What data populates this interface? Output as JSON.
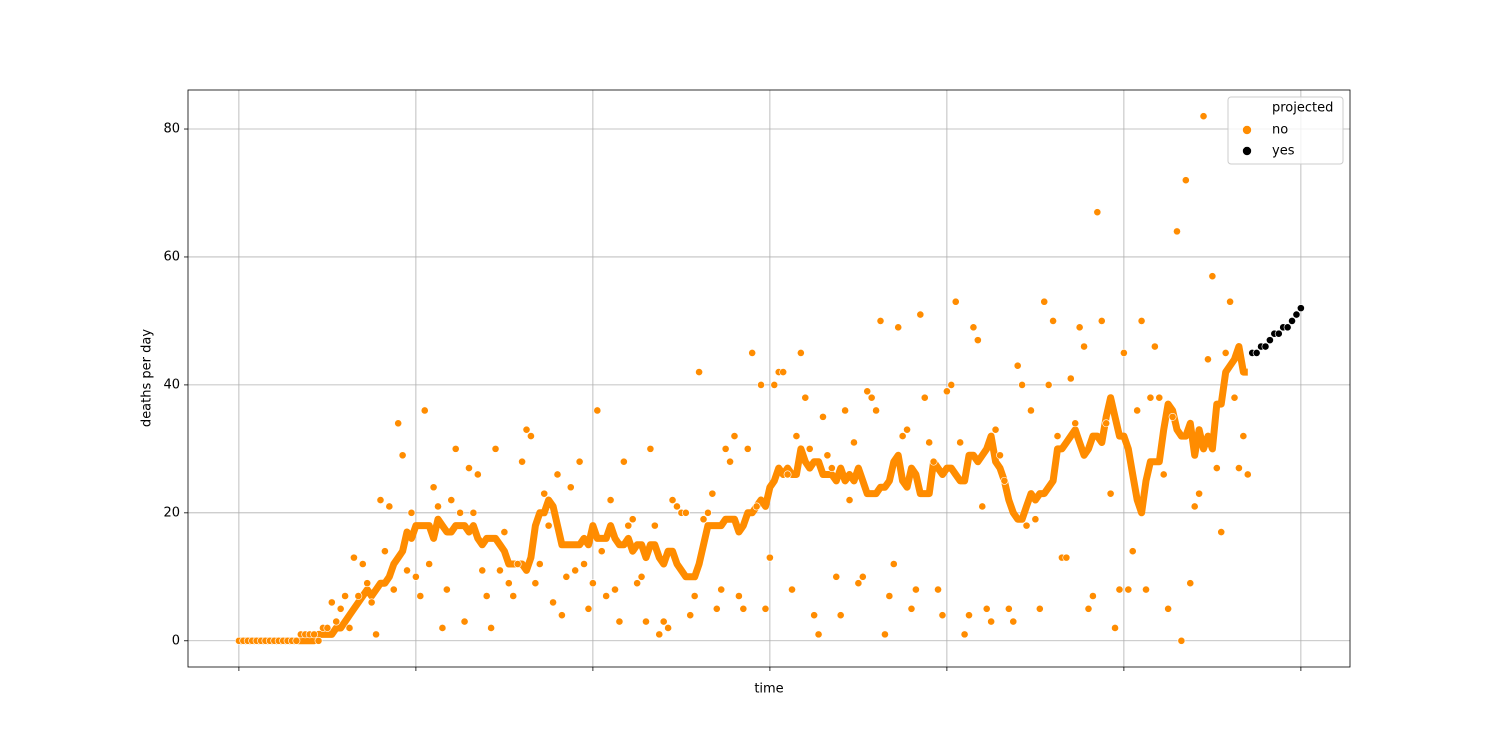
{
  "chart_data": {
    "type": "scatter",
    "xlabel": "time",
    "ylabel": "deaths per day",
    "xlim": [
      -11.5,
      251.1
    ],
    "ylim": [
      -4.1,
      86.1
    ],
    "xticks": [
      0,
      40,
      80,
      120,
      160,
      200,
      240
    ],
    "yticks": [
      0,
      20,
      40,
      60,
      80
    ],
    "grid": true,
    "legend_title": "projected",
    "legend_position": "upper right",
    "x": [
      0,
      1,
      2,
      3,
      4,
      5,
      6,
      7,
      8,
      9,
      10,
      11,
      12,
      13,
      14,
      15,
      16,
      17,
      18,
      19,
      20,
      21,
      22,
      23,
      24,
      25,
      26,
      27,
      28,
      29,
      30,
      31,
      32,
      33,
      34,
      35,
      36,
      37,
      38,
      39,
      40,
      41,
      42,
      43,
      44,
      45,
      46,
      47,
      48,
      49,
      50,
      51,
      52,
      53,
      54,
      55,
      56,
      57,
      58,
      59,
      60,
      61,
      62,
      63,
      64,
      65,
      66,
      67,
      68,
      69,
      70,
      71,
      72,
      73,
      74,
      75,
      76,
      77,
      78,
      79,
      80,
      81,
      82,
      83,
      84,
      85,
      86,
      87,
      88,
      89,
      90,
      91,
      92,
      93,
      94,
      95,
      96,
      97,
      98,
      99,
      100,
      101,
      102,
      103,
      104,
      105,
      106,
      107,
      108,
      109,
      110,
      111,
      112,
      113,
      114,
      115,
      116,
      117,
      118,
      119,
      120,
      121,
      122,
      123,
      124,
      125,
      126,
      127,
      128,
      129,
      130,
      131,
      132,
      133,
      134,
      135,
      136,
      137,
      138,
      139,
      140,
      141,
      142,
      143,
      144,
      145,
      146,
      147,
      148,
      149,
      150,
      151,
      152,
      153,
      154,
      155,
      156,
      157,
      158,
      159,
      160,
      161,
      162,
      163,
      164,
      165,
      166,
      167,
      168,
      169,
      170,
      171,
      172,
      173,
      174,
      175,
      176,
      177,
      178,
      179,
      180,
      181,
      182,
      183,
      184,
      185,
      186,
      187,
      188,
      189,
      190,
      191,
      192,
      193,
      194,
      195,
      196,
      197,
      198,
      199,
      200,
      201,
      202,
      203,
      204,
      205,
      206,
      207,
      208,
      209,
      210,
      211,
      212,
      213,
      214,
      215,
      216,
      217,
      218,
      219,
      220,
      221,
      222,
      223,
      224,
      225,
      226,
      227,
      228
    ],
    "series": [
      {
        "name": "no",
        "color": "#ff8c00",
        "values": [
          0,
          0,
          0,
          0,
          0,
          0,
          0,
          0,
          0,
          0,
          0,
          0,
          0,
          0,
          1,
          1,
          1,
          1,
          0,
          2,
          2,
          6,
          3,
          5,
          7,
          2,
          13,
          7,
          12,
          9,
          6,
          1,
          22,
          14,
          21,
          8,
          34,
          29,
          11,
          20,
          10,
          7,
          36,
          12,
          24,
          21,
          2,
          8,
          22,
          30,
          20,
          3,
          27,
          20,
          26,
          11,
          7,
          2,
          30,
          11,
          17,
          9,
          7,
          12,
          28,
          33,
          32,
          9,
          12,
          23,
          18,
          6,
          26,
          4,
          10,
          24,
          11,
          28,
          12,
          5,
          9,
          36,
          14,
          7,
          22,
          8,
          3,
          28,
          18,
          19,
          9,
          10,
          3,
          30,
          18,
          1,
          3,
          2,
          22,
          21,
          20,
          20,
          4,
          7,
          42,
          19,
          20,
          23,
          5,
          8,
          30,
          28,
          32,
          7,
          5,
          30,
          45,
          21,
          40,
          5,
          13,
          40,
          42,
          42,
          26,
          8,
          32,
          45,
          38,
          30,
          4,
          1,
          35,
          29,
          27,
          10,
          4,
          36,
          22,
          31,
          9,
          10,
          39,
          38,
          36,
          50,
          1,
          7,
          12,
          49,
          32,
          33,
          5,
          8,
          51,
          38,
          31,
          28,
          8,
          4,
          39,
          40,
          53,
          31,
          1,
          4,
          49,
          47,
          21,
          5,
          3,
          33,
          29,
          25,
          5,
          3,
          43,
          40,
          18,
          36,
          19,
          5,
          53,
          40,
          50,
          32,
          13,
          13,
          41,
          34,
          49,
          46,
          5,
          7,
          67,
          50,
          34,
          23,
          2,
          8,
          45,
          8,
          14,
          36,
          50,
          8,
          38,
          46,
          38,
          26,
          5,
          35,
          64,
          0,
          72,
          9,
          21,
          23,
          82,
          44,
          57,
          27,
          17,
          45,
          53,
          38,
          27,
          32,
          26
        ]
      },
      {
        "name": "yes",
        "color": "#000000",
        "x": [
          229,
          230,
          231,
          232,
          233,
          234,
          235,
          236,
          237,
          238,
          239,
          240
        ],
        "values": [
          45,
          45,
          46,
          46,
          47,
          48,
          48,
          49,
          49,
          50,
          51,
          52
        ]
      }
    ],
    "line": {
      "color": "#ff8c00",
      "values": [
        0,
        0,
        0,
        0,
        0,
        0,
        0,
        0,
        0,
        0,
        0,
        0,
        0,
        0,
        0,
        0,
        0,
        0,
        1,
        1,
        1,
        1,
        2,
        2,
        3,
        4,
        5,
        6,
        7,
        8,
        7,
        8,
        9,
        9,
        10,
        12,
        13,
        14,
        17,
        16,
        18,
        18,
        18,
        18,
        16,
        19,
        18,
        17,
        17,
        18,
        18,
        18,
        17,
        18,
        16,
        15,
        16,
        16,
        16,
        15,
        14,
        12,
        12,
        12,
        12,
        11,
        13,
        18,
        20,
        20,
        22,
        21,
        18,
        15,
        15,
        15,
        15,
        15,
        16,
        15,
        18,
        16,
        16,
        16,
        18,
        16,
        15,
        15,
        16,
        14,
        15,
        15,
        13,
        15,
        15,
        13,
        12,
        14,
        14,
        12,
        11,
        10,
        10,
        10,
        12,
        15,
        18,
        18,
        18,
        18,
        19,
        19,
        19,
        17,
        18,
        20,
        20,
        21,
        22,
        21,
        24,
        25,
        27,
        26,
        27,
        26,
        26,
        30,
        28,
        27,
        28,
        28,
        26,
        26,
        26,
        25,
        27,
        25,
        26,
        25,
        27,
        25,
        23,
        23,
        23,
        24,
        24,
        25,
        28,
        29,
        25,
        24,
        27,
        26,
        23,
        23,
        23,
        28,
        27,
        26,
        27,
        27,
        26,
        25,
        25,
        29,
        29,
        28,
        29,
        30,
        32,
        28,
        27,
        25,
        22,
        20,
        19,
        19,
        21,
        23,
        22,
        23,
        23,
        24,
        25,
        30,
        30,
        31,
        32,
        33,
        31,
        29,
        30,
        32,
        32,
        31,
        35,
        38,
        35,
        32,
        32,
        30,
        26,
        22,
        20,
        25,
        28,
        28,
        28,
        33,
        37,
        36,
        33,
        32,
        32,
        34,
        29,
        33,
        30,
        32,
        30,
        37,
        37,
        42,
        43,
        44,
        46,
        42,
        42
      ]
    }
  }
}
